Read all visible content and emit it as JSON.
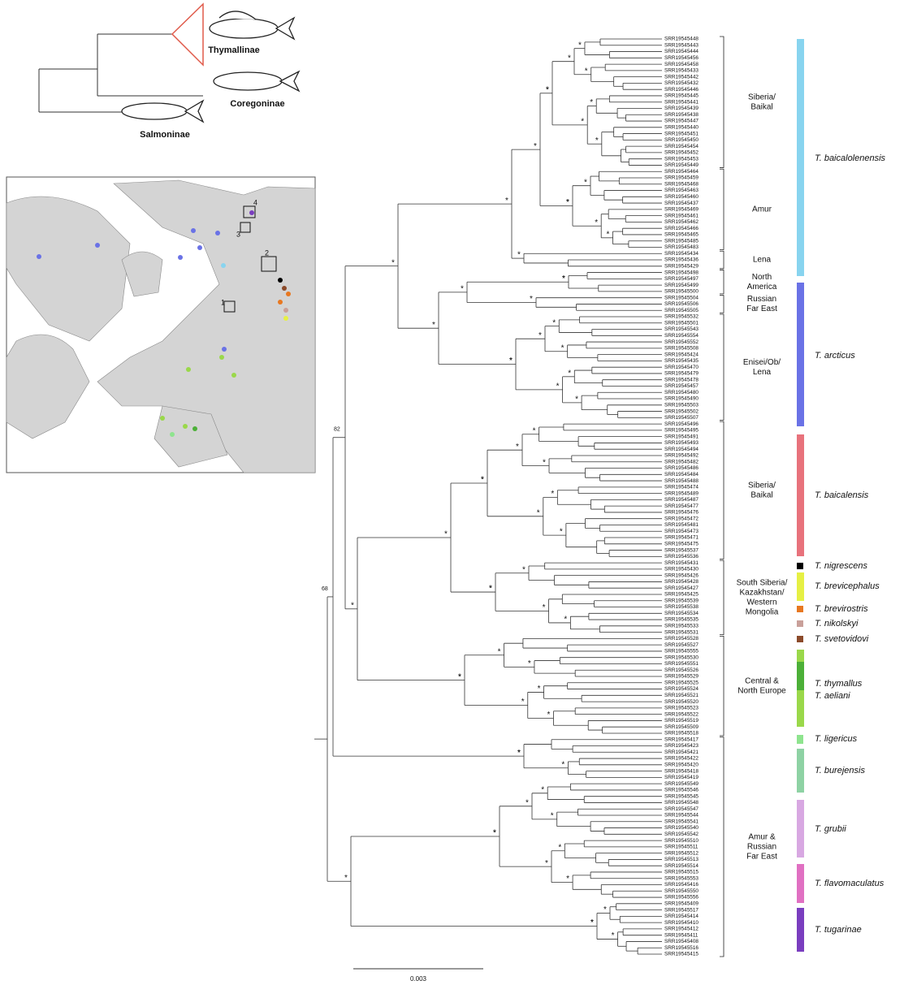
{
  "inset": {
    "subfamilies": [
      "Thymallinae",
      "Coregoninae",
      "Salmoninae"
    ],
    "map_sites": [
      "1",
      "2",
      "3",
      "4"
    ]
  },
  "tree": {
    "leaves": [
      "SRR19545448",
      "SRR19545443",
      "SRR19545444",
      "SRR19545456",
      "SRR19545458",
      "SRR19545433",
      "SRR19545442",
      "SRR19545432",
      "SRR19545446",
      "SRR19545445",
      "SRR19545441",
      "SRR19545439",
      "SRR19545438",
      "SRR19545447",
      "SRR19545440",
      "SRR19545451",
      "SRR19545450",
      "SRR19545454",
      "SRR19545452",
      "SRR19545453",
      "SRR19545449",
      "SRR19545464",
      "SRR19545459",
      "SRR19545468",
      "SRR19545463",
      "SRR19545460",
      "SRR19545437",
      "SRR19545469",
      "SRR19545461",
      "SRR19545462",
      "SRR19545466",
      "SRR19545465",
      "SRR19545485",
      "SRR19545483",
      "SRR19545434",
      "SRR19545436",
      "SRR19545429",
      "SRR19545498",
      "SRR19545497",
      "SRR19545499",
      "SRR19545500",
      "SRR19545504",
      "SRR19545506",
      "SRR19545505",
      "SRR19545532",
      "SRR19545501",
      "SRR19545543",
      "SRR19545554",
      "SRR19545552",
      "SRR19545508",
      "SRR19545424",
      "SRR19545435",
      "SRR19545470",
      "SRR19545479",
      "SRR19545478",
      "SRR19545457",
      "SRR19545480",
      "SRR19545490",
      "SRR19545503",
      "SRR19545502",
      "SRR19545507",
      "SRR19545496",
      "SRR19545495",
      "SRR19545491",
      "SRR19545493",
      "SRR19545494",
      "SRR19545492",
      "SRR19545482",
      "SRR19545486",
      "SRR19545484",
      "SRR19545488",
      "SRR19545474",
      "SRR19545489",
      "SRR19545487",
      "SRR19545477",
      "SRR19545476",
      "SRR19545472",
      "SRR19545481",
      "SRR19545473",
      "SRR19545471",
      "SRR19545475",
      "SRR19545537",
      "SRR19545536",
      "SRR19545431",
      "SRR19545430",
      "SRR19545426",
      "SRR19545428",
      "SRR19545427",
      "SRR19545425",
      "SRR19545539",
      "SRR19545538",
      "SRR19545534",
      "SRR19545535",
      "SRR19545533",
      "SRR19545531",
      "SRR19545528",
      "SRR19545527",
      "SRR19545555",
      "SRR19545530",
      "SRR19545551",
      "SRR19545526",
      "SRR19545529",
      "SRR19545525",
      "SRR19545524",
      "SRR19545521",
      "SRR19545520",
      "SRR19545523",
      "SRR19545522",
      "SRR19545519",
      "SRR19545509",
      "SRR19545518",
      "SRR19545417",
      "SRR19545423",
      "SRR19545421",
      "SRR19545422",
      "SRR19545420",
      "SRR19545418",
      "SRR19545419",
      "SRR19545549",
      "SRR19545546",
      "SRR19545545",
      "SRR19545548",
      "SRR19545547",
      "SRR19545544",
      "SRR19545541",
      "SRR19545540",
      "SRR19545542",
      "SRR19545510",
      "SRR19545511",
      "SRR19545512",
      "SRR19545513",
      "SRR19545514",
      "SRR19545515",
      "SRR19545553",
      "SRR19545416",
      "SRR19545550",
      "SRR19545556",
      "SRR19545409",
      "SRR19545517",
      "SRR19545414",
      "SRR19545410",
      "SRR19545412",
      "SRR19545411",
      "SRR19545408",
      "SRR19545516",
      "SRR19545415"
    ],
    "support": [
      "*",
      "82",
      "68"
    ],
    "scale_bar": "0.003"
  },
  "regions": [
    {
      "lines": [
        "Siberia/",
        "Baikal"
      ]
    },
    {
      "lines": [
        "Amur"
      ]
    },
    {
      "lines": [
        "Lena"
      ]
    },
    {
      "lines": [
        "North",
        "America"
      ]
    },
    {
      "lines": [
        "Russian",
        "Far East"
      ]
    },
    {
      "lines": [
        "Enisei/Ob/",
        "Lena"
      ]
    },
    {
      "lines": [
        "Siberia/",
        "Baikal"
      ]
    },
    {
      "lines": [
        "South Siberia/",
        "Kazakhstan/",
        "Western",
        "Mongolia"
      ]
    },
    {
      "lines": [
        "Central &",
        "North Europe"
      ]
    },
    {
      "lines": [
        "Amur &",
        "Russian",
        "Far East"
      ]
    }
  ],
  "species": [
    {
      "name": "T. baicalolenensis",
      "color": "#88d4ef"
    },
    {
      "name": "T. arcticus",
      "color": "#6a72e6"
    },
    {
      "name": "T. baicalensis",
      "color": "#e8727c"
    },
    {
      "name": "T. nigrescens",
      "color": "#000000"
    },
    {
      "name": "T. brevicephalus",
      "color": "#e6f044"
    },
    {
      "name": "T. brevirostris",
      "color": "#e87820"
    },
    {
      "name": "T. nikolskyi",
      "color": "#c9a09a"
    },
    {
      "name": "T. svetovidovi",
      "color": "#8b4a2a"
    },
    {
      "name": "T. thymallus",
      "color": "#9ad84a"
    },
    {
      "name": "T. aeliani",
      "color": "#4cb038"
    },
    {
      "name": "T. ligericus",
      "color": "#8ee48e"
    },
    {
      "name": "T. burejensis",
      "color": "#8ed2a4"
    },
    {
      "name": "T. grubii",
      "color": "#d8a8e2"
    },
    {
      "name": "T. flavomaculatus",
      "color": "#e070c2"
    },
    {
      "name": "T. tugarinae",
      "color": "#7a3ebf"
    }
  ]
}
